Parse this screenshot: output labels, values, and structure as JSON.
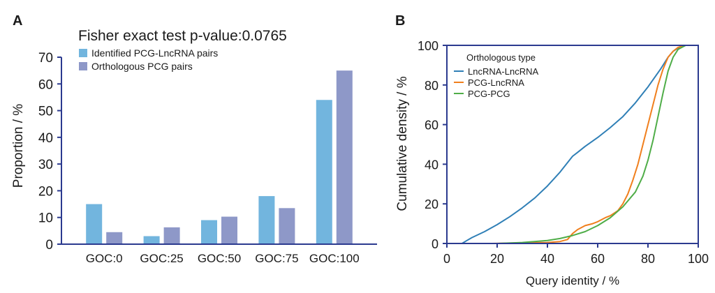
{
  "chart_data": [
    {
      "panel": "A",
      "type": "bar",
      "title": "Fisher exact test p-value:0.0765",
      "xlabel": "",
      "ylabel": "Proportion / %",
      "ylim": [
        0,
        70
      ],
      "yticks": [
        0,
        10,
        20,
        30,
        40,
        50,
        60,
        70
      ],
      "grid": false,
      "legend": "top-left",
      "categories": [
        "GOC:0",
        "GOC:25",
        "GOC:50",
        "GOC:75",
        "GOC:100"
      ],
      "series": [
        {
          "name": "Identified PCG-LncRNA pairs",
          "color": "#72b5de",
          "values": [
            15,
            3,
            9,
            18,
            54
          ]
        },
        {
          "name": "Orthologous PCG pairs",
          "color": "#8e98c8",
          "values": [
            4.5,
            6.3,
            10.3,
            13.5,
            65
          ]
        }
      ]
    },
    {
      "panel": "B",
      "type": "line",
      "title": "",
      "xlabel": "Query identity / %",
      "ylabel": "Cumulative density / %",
      "xlim": [
        0,
        100
      ],
      "ylim": [
        0,
        100
      ],
      "xticks": [
        0,
        20,
        40,
        60,
        80,
        100
      ],
      "yticks": [
        0,
        20,
        40,
        60,
        80,
        100
      ],
      "grid": false,
      "legend": "top-left",
      "legend_title": "Orthologous type",
      "series": [
        {
          "name": "LncRNA-LncRNA",
          "color": "#2f7fb6",
          "x": [
            6,
            8,
            10,
            15,
            20,
            25,
            30,
            35,
            40,
            45,
            50,
            52,
            55,
            60,
            65,
            70,
            75,
            80,
            85,
            88,
            90,
            93,
            95
          ],
          "y": [
            0,
            1.5,
            3,
            6,
            9.5,
            13.5,
            18,
            23,
            29,
            36,
            44,
            46,
            49,
            53.5,
            58.5,
            64,
            71,
            79,
            88,
            94,
            97,
            99.5,
            100
          ]
        },
        {
          "name": "PCG-LncRNA",
          "color": "#f07f1d",
          "x": [
            18,
            30,
            40,
            45,
            48,
            50,
            52,
            55,
            58,
            60,
            63,
            65,
            68,
            70,
            72,
            74,
            76,
            78,
            80,
            82,
            84,
            86,
            88,
            90,
            92,
            95
          ],
          "y": [
            0,
            0.3,
            0.5,
            1,
            2,
            5,
            7,
            9,
            10,
            11,
            13,
            14,
            16.5,
            20,
            25,
            32,
            40,
            50,
            60,
            70,
            80,
            88,
            94,
            97,
            99,
            100
          ]
        },
        {
          "name": "PCG-PCG",
          "color": "#4fad48",
          "x": [
            20,
            30,
            40,
            45,
            50,
            55,
            60,
            65,
            70,
            75,
            78,
            80,
            82,
            84,
            86,
            88,
            90,
            92,
            95
          ],
          "y": [
            0,
            0.5,
            1.5,
            2.5,
            4,
            6,
            9,
            13,
            18.5,
            26,
            34,
            42,
            52,
            64,
            76,
            87,
            94,
            98,
            100
          ]
        }
      ]
    }
  ],
  "panels": {
    "a_label": "A",
    "b_label": "B"
  }
}
